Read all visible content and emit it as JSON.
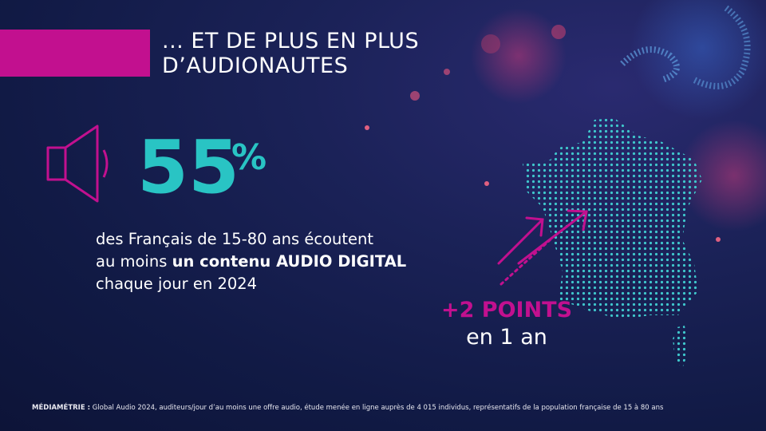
{
  "header": {
    "title": [
      "... ET DE PLUS EN PLUS",
      "D’AUDIONAUTES"
    ]
  },
  "stat": {
    "number": "55",
    "unit": "%"
  },
  "description": {
    "lines": [
      [
        {
          "text": "des Français de 15-80 ans écoutent",
          "bold": false
        }
      ],
      [
        {
          "text": "au moins ",
          "bold": false
        },
        {
          "text": "un contenu AUDIO DIGITAL",
          "bold": true
        }
      ],
      [
        {
          "text": "chaque jour en 2024",
          "bold": false
        }
      ]
    ]
  },
  "evolution": {
    "value": "+2 POINTS",
    "period": "en 1 an"
  },
  "footnote": {
    "source": "MÉDIAMÉTRIE :",
    "text": " Global Audio 2024, auditeurs/jour d’au moins une offre audio, étude menée en ligne auprès de 4 015 individus, représentatifs de la population française de 15 à 80 ans"
  }
}
